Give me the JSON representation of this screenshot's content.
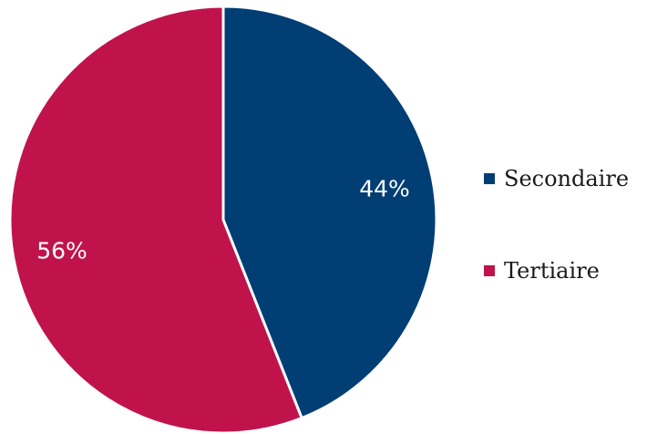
{
  "chart_data": {
    "type": "pie",
    "slices": [
      {
        "label": "Secondaire",
        "value": 44,
        "display": "44%",
        "color": "#003e74"
      },
      {
        "label": "Tertiaire",
        "value": 56,
        "display": "56%",
        "color": "#c0134c"
      }
    ],
    "start_angle": "12 o'clock",
    "direction": "clockwise",
    "legend_position": "right",
    "separator_color": "#ffffff"
  }
}
